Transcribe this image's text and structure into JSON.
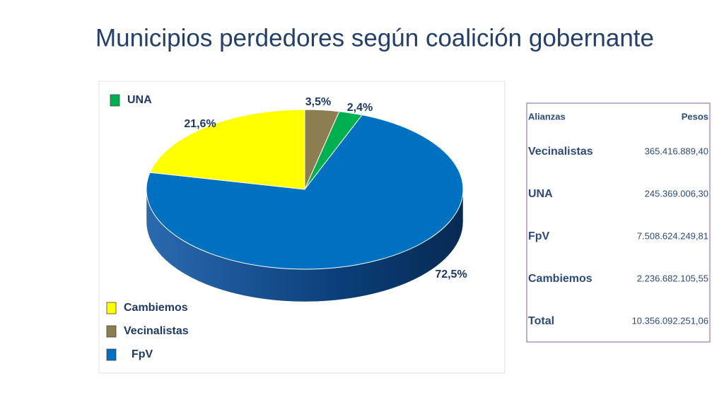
{
  "chart_data": {
    "type": "pie",
    "title": "Municipios perdedores según coalición gobernante",
    "categories": [
      "Vecinalistas",
      "UNA",
      "FpV",
      "Cambiemos"
    ],
    "values": [
      3.5,
      2.4,
      72.5,
      21.6
    ],
    "value_labels": [
      "3,5%",
      "2,4%",
      "72,5%",
      "21,6%"
    ],
    "colors": [
      "#8c7e52",
      "#00b050",
      "#0070c0",
      "#ffff00"
    ]
  },
  "table": {
    "header": [
      "Alianzas",
      "Pesos"
    ],
    "rows": [
      [
        "Vecinalistas",
        "365.416.889,40"
      ],
      [
        "UNA",
        "245.369.006,30"
      ],
      [
        "FpV",
        "7.508.624.249,81"
      ],
      [
        "Cambiemos",
        "2.236.682.105,55"
      ],
      [
        "Total",
        "10.356.092.251,06"
      ]
    ]
  }
}
